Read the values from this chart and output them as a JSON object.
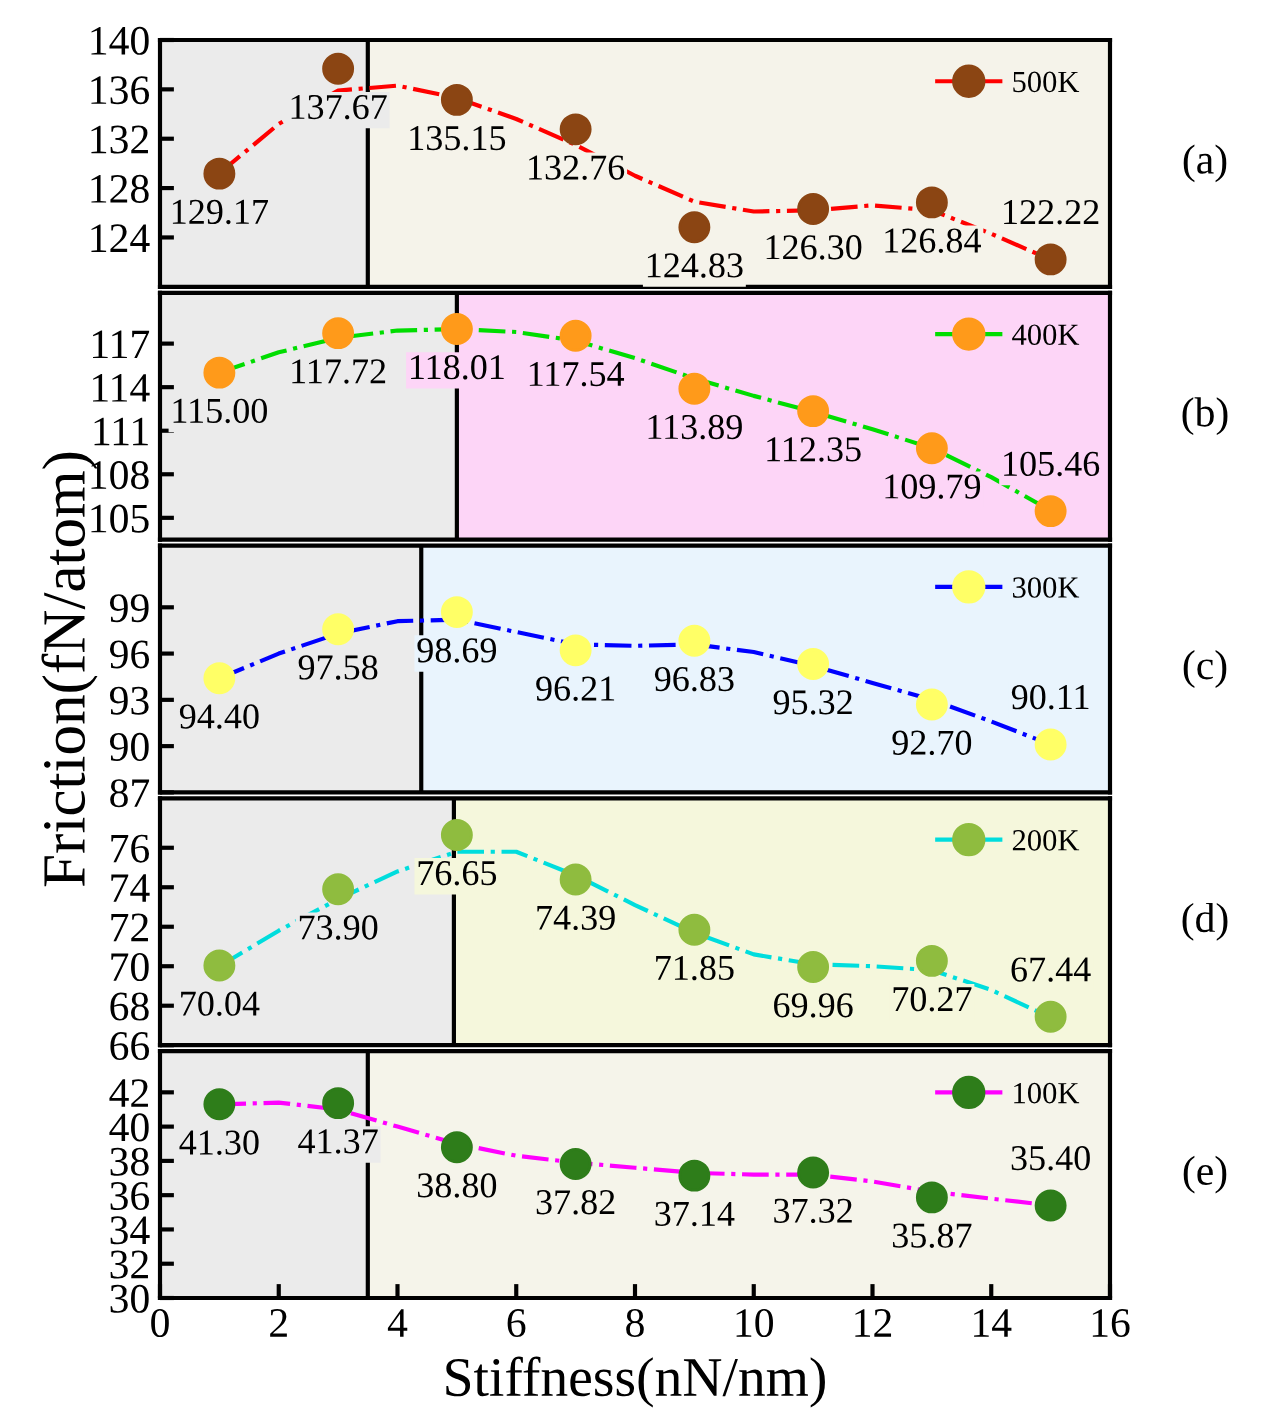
{
  "chart_data": [
    {
      "type": "scatter",
      "xlim": [
        0,
        16
      ],
      "xticks": [
        0,
        2,
        4,
        6,
        8,
        10,
        12,
        14,
        16
      ],
      "ylim": [
        120,
        140
      ],
      "yticks": [
        124,
        128,
        132,
        136,
        140
      ],
      "tick_labels": "y",
      "legend": "top right",
      "annotations": [
        "(a)"
      ],
      "x": [
        1,
        3,
        5,
        7,
        9,
        11,
        13,
        15
      ],
      "series": [
        {
          "name": "500K",
          "color": "#8b4513",
          "marker": "circle",
          "values": [
            129.17,
            137.67,
            135.15,
            132.76,
            124.83,
            126.3,
            126.84,
            122.22
          ],
          "value_labels": [
            "129.17",
            "137.67",
            "135.15",
            "132.76",
            "124.83",
            "126.30",
            "126.84",
            "122.22"
          ]
        },
        {
          "type": "line",
          "color": "#ff0000",
          "marker": "none",
          "line_style": "dashdot",
          "x": [
            1,
            2,
            3,
            4,
            5,
            6,
            7,
            8,
            9,
            10,
            11,
            12,
            13,
            14,
            15
          ],
          "values": [
            129.2,
            133.2,
            135.9,
            136.3,
            135.3,
            133.6,
            131.5,
            129.0,
            126.9,
            126.1,
            126.2,
            126.6,
            126.2,
            124.3,
            122.2
          ]
        }
      ],
      "ref_lines": [
        {
          "axis": "x",
          "value": 3.5,
          "color": "#000000"
        }
      ],
      "bands": [
        {
          "axis": "x",
          "from": 0,
          "to": 3.5,
          "color": "#ebebeb"
        },
        {
          "axis": "x",
          "from": 3.5,
          "to": 16,
          "color": "#f5f3ea"
        }
      ]
    },
    {
      "type": "scatter",
      "xlim": [
        0,
        16
      ],
      "xticks": [
        0,
        2,
        4,
        6,
        8,
        10,
        12,
        14,
        16
      ],
      "ylim": [
        103.5,
        120.5
      ],
      "yticks": [
        105,
        108,
        111,
        114,
        117
      ],
      "tick_labels": "y",
      "legend": "top right",
      "annotations": [
        "(b)"
      ],
      "x": [
        1,
        3,
        5,
        7,
        9,
        11,
        13,
        15
      ],
      "series": [
        {
          "name": "400K",
          "color": "#ff9a1a",
          "marker": "circle",
          "values": [
            115.0,
            117.72,
            118.01,
            117.54,
            113.89,
            112.35,
            109.79,
            105.46
          ],
          "value_labels": [
            "115.00",
            "117.72",
            "118.01",
            "117.54",
            "113.89",
            "112.35",
            "109.79",
            "105.46"
          ]
        },
        {
          "type": "line",
          "color": "#00dd00",
          "marker": "none",
          "line_style": "dashdot",
          "x": [
            1,
            2,
            3,
            4,
            5,
            6,
            7,
            8,
            9,
            10,
            11,
            12,
            13,
            14,
            15
          ],
          "values": [
            115.0,
            116.4,
            117.4,
            117.9,
            118.0,
            117.8,
            117.2,
            116.0,
            114.6,
            113.4,
            112.3,
            111.1,
            109.8,
            107.8,
            105.5
          ]
        }
      ],
      "ref_lines": [
        {
          "axis": "x",
          "value": 5.0,
          "color": "#000000"
        }
      ],
      "bands": [
        {
          "axis": "x",
          "from": 0,
          "to": 5.0,
          "color": "#ebebeb"
        },
        {
          "axis": "x",
          "from": 5.0,
          "to": 16,
          "color": "#fdd5f7"
        }
      ]
    },
    {
      "type": "scatter",
      "ylabel": "Friction(fN/atom)",
      "xlim": [
        0,
        16
      ],
      "xticks": [
        0,
        2,
        4,
        6,
        8,
        10,
        12,
        14,
        16
      ],
      "ylim": [
        87,
        103
      ],
      "yticks": [
        87,
        90,
        93,
        96,
        99
      ],
      "tick_labels": "y",
      "legend": "top right",
      "annotations": [
        "(c)"
      ],
      "x": [
        1,
        3,
        5,
        7,
        9,
        11,
        13,
        15
      ],
      "series": [
        {
          "name": "300K",
          "color": "#ffff66",
          "marker": "circle",
          "values": [
            94.4,
            97.58,
            98.69,
            96.21,
            96.83,
            95.32,
            92.7,
            90.11
          ],
          "value_labels": [
            "94.40",
            "97.58",
            "98.69",
            "96.21",
            "96.83",
            "95.32",
            "92.70",
            "90.11"
          ]
        },
        {
          "type": "line",
          "color": "#0000ff",
          "marker": "none",
          "line_style": "dashdot",
          "x": [
            1,
            2,
            3,
            4,
            5,
            6,
            7,
            8,
            9,
            10,
            11,
            12,
            13,
            14,
            15
          ],
          "values": [
            94.4,
            96.0,
            97.3,
            98.1,
            98.2,
            97.4,
            96.6,
            96.5,
            96.6,
            96.1,
            95.2,
            94.1,
            93.0,
            91.6,
            90.1
          ]
        }
      ],
      "ref_lines": [
        {
          "axis": "x",
          "value": 4.4,
          "color": "#000000"
        }
      ],
      "bands": [
        {
          "axis": "x",
          "from": 0,
          "to": 4.4,
          "color": "#ebebeb"
        },
        {
          "axis": "x",
          "from": 4.4,
          "to": 16,
          "color": "#e9f4fd"
        }
      ]
    },
    {
      "type": "scatter",
      "xlim": [
        0,
        16
      ],
      "xticks": [
        0,
        2,
        4,
        6,
        8,
        10,
        12,
        14,
        16
      ],
      "ylim": [
        66,
        78.5
      ],
      "yticks": [
        66,
        68,
        70,
        72,
        74,
        76
      ],
      "tick_labels": "y",
      "legend": "top right",
      "annotations": [
        "(d)"
      ],
      "x": [
        1,
        3,
        5,
        7,
        9,
        11,
        13,
        15
      ],
      "series": [
        {
          "name": "200K",
          "color": "#8fbc3f",
          "marker": "circle",
          "values": [
            70.04,
            73.9,
            76.65,
            74.39,
            71.85,
            69.96,
            70.27,
            67.44
          ],
          "value_labels": [
            "70.04",
            "73.90",
            "76.65",
            "74.39",
            "71.85",
            "69.96",
            "70.27",
            "67.44"
          ]
        },
        {
          "type": "line",
          "color": "#00dddd",
          "marker": "none",
          "line_style": "dashdot",
          "x": [
            1,
            2,
            3,
            4,
            5,
            6,
            7,
            8,
            9,
            10,
            11,
            12,
            13,
            14,
            15
          ],
          "values": [
            70.0,
            71.8,
            73.4,
            74.8,
            75.8,
            75.8,
            74.6,
            73.1,
            71.7,
            70.6,
            70.1,
            70.0,
            69.8,
            68.8,
            67.4
          ]
        }
      ],
      "ref_lines": [
        {
          "axis": "x",
          "value": 4.95,
          "color": "#000000"
        }
      ],
      "bands": [
        {
          "axis": "x",
          "from": 0,
          "to": 4.95,
          "color": "#ebebeb"
        },
        {
          "axis": "x",
          "from": 4.95,
          "to": 16,
          "color": "#f5f7dc"
        }
      ]
    },
    {
      "type": "scatter",
      "xlabel": "Stiffness(nN/nm)",
      "xlim": [
        0,
        16
      ],
      "xticks": [
        0,
        2,
        4,
        6,
        8,
        10,
        12,
        14,
        16
      ],
      "ylim": [
        30,
        44.4
      ],
      "yticks": [
        30,
        32,
        34,
        36,
        38,
        40,
        42
      ],
      "legend": "top right",
      "annotations": [
        "(e)"
      ],
      "x": [
        1,
        3,
        5,
        7,
        9,
        11,
        13,
        15
      ],
      "series": [
        {
          "name": "100K",
          "color": "#2e7d1a",
          "marker": "circle",
          "values": [
            41.3,
            41.37,
            38.8,
            37.82,
            37.14,
            37.32,
            35.87,
            35.4
          ],
          "value_labels": [
            "41.30",
            "41.37",
            "38.80",
            "37.82",
            "37.14",
            "37.32",
            "35.87",
            "35.40"
          ]
        },
        {
          "type": "line",
          "color": "#ff00ff",
          "marker": "none",
          "line_style": "dashdot",
          "x": [
            1,
            2,
            3,
            4,
            5,
            6,
            7,
            8,
            9,
            10,
            11,
            12,
            13,
            14,
            15
          ],
          "values": [
            41.3,
            41.4,
            41.0,
            40.0,
            39.0,
            38.3,
            37.9,
            37.6,
            37.3,
            37.2,
            37.2,
            36.8,
            36.2,
            35.8,
            35.4
          ]
        }
      ],
      "ref_lines": [
        {
          "axis": "x",
          "value": 3.5,
          "color": "#000000"
        }
      ],
      "bands": [
        {
          "axis": "x",
          "from": 0,
          "to": 3.5,
          "color": "#ebebeb"
        },
        {
          "axis": "x",
          "from": 3.5,
          "to": 16,
          "color": "#f5f4ea"
        }
      ]
    }
  ]
}
